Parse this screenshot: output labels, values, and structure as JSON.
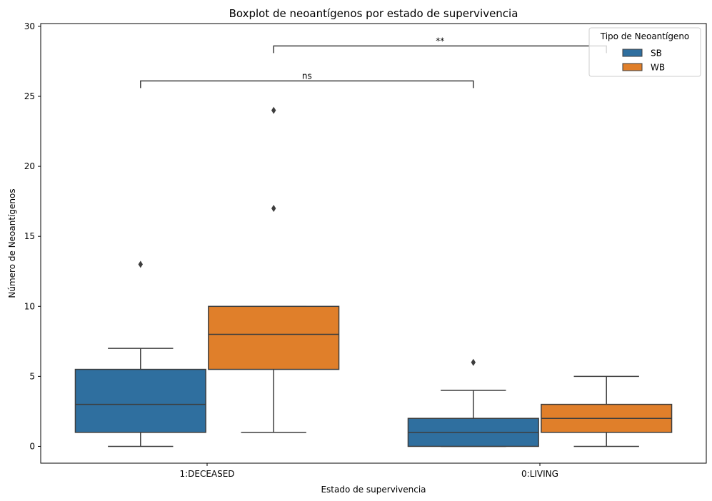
{
  "chart_data": {
    "type": "boxplot",
    "title": "Boxplot de neoantígenos por estado de supervivencia",
    "xlabel": "Estado de supervivencia",
    "ylabel": "Número de Neoantígenos",
    "categories": [
      "1:DECEASED",
      "0:LIVING"
    ],
    "ylim": [
      -1.2,
      30.2
    ],
    "yticks": [
      0,
      5,
      10,
      15,
      20,
      25,
      30
    ],
    "grid": false,
    "legend": {
      "title": "Tipo de Neoantígeno",
      "placement": "top-right",
      "entries": [
        {
          "name": "SB",
          "color": "#2f6f9f"
        },
        {
          "name": "WB",
          "color": "#e07f2a"
        }
      ]
    },
    "series": [
      {
        "name": "SB",
        "color": "#2f6f9f",
        "boxes": [
          {
            "category": "1:DECEASED",
            "whisker_low": 0,
            "q1": 1,
            "median": 3,
            "q3": 5.5,
            "whisker_high": 7,
            "outliers": [
              13
            ]
          },
          {
            "category": "0:LIVING",
            "whisker_low": 0,
            "q1": 0,
            "median": 1,
            "q3": 2,
            "whisker_high": 4,
            "outliers": [
              6
            ]
          }
        ]
      },
      {
        "name": "WB",
        "color": "#e07f2a",
        "boxes": [
          {
            "category": "1:DECEASED",
            "whisker_low": 1,
            "q1": 5.5,
            "median": 8,
            "q3": 10,
            "whisker_high": 10,
            "outliers": [
              17,
              24
            ]
          },
          {
            "category": "0:LIVING",
            "whisker_low": 0,
            "q1": 1,
            "median": 2,
            "q3": 3,
            "whisker_high": 5,
            "outliers": []
          }
        ]
      }
    ],
    "annotations": [
      {
        "label": "ns",
        "from": {
          "category": "1:DECEASED",
          "series": "SB"
        },
        "to": {
          "category": "0:LIVING",
          "series": "SB"
        },
        "y": 26.1
      },
      {
        "label": "**",
        "from": {
          "category": "1:DECEASED",
          "series": "WB"
        },
        "to": {
          "category": "0:LIVING",
          "series": "WB"
        },
        "y": 28.6
      }
    ]
  }
}
